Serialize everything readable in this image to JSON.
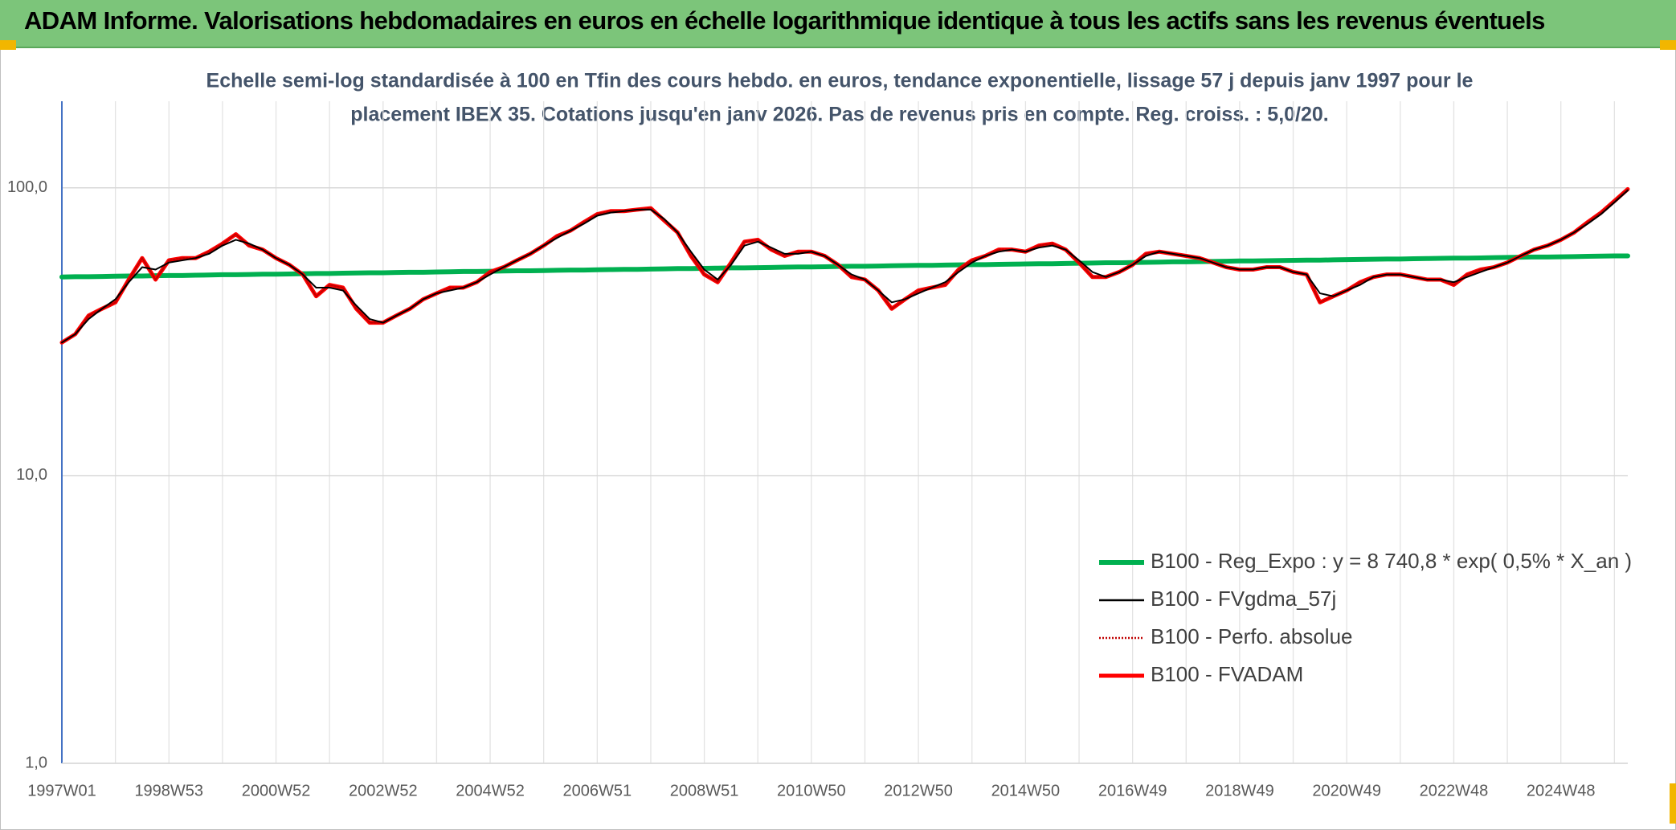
{
  "chart_data": {
    "type": "line",
    "title": "ADAM Informe. Valorisations hebdomadaires en euros en échelle logarithmique identique à tous les actifs sans les revenus éventuels",
    "subtitle": [
      "Echelle semi-log standardisée à 100 en Tfin des cours hebdo. en euros, tendance exponentielle, lissage 57 j depuis janv 1997 pour le",
      "placement IBEX 35. Cotations jusqu'en janv 2026. Pas de revenus pris en compte. Reg. croiss. : 5,0/20."
    ],
    "log_scale": true,
    "grid": true,
    "legend_position": "lower right",
    "ylim": [
      1,
      200
    ],
    "yticks": [
      {
        "value": 1,
        "label": "1,0"
      },
      {
        "value": 10,
        "label": "10,0"
      },
      {
        "value": 100,
        "label": "100,0"
      }
    ],
    "categories": [
      "1997W01",
      null,
      null,
      null,
      null,
      null,
      null,
      null,
      "1998W53",
      null,
      null,
      null,
      null,
      null,
      null,
      null,
      "2000W52",
      null,
      null,
      null,
      null,
      null,
      null,
      null,
      "2002W52",
      null,
      null,
      null,
      null,
      null,
      null,
      null,
      "2004W52",
      null,
      null,
      null,
      null,
      null,
      null,
      null,
      "2006W51",
      null,
      null,
      null,
      null,
      null,
      null,
      null,
      "2008W51",
      null,
      null,
      null,
      null,
      null,
      null,
      null,
      "2010W50",
      null,
      null,
      null,
      null,
      null,
      null,
      null,
      "2012W50",
      null,
      null,
      null,
      null,
      null,
      null,
      null,
      "2014W50",
      null,
      null,
      null,
      null,
      null,
      null,
      null,
      "2016W49",
      null,
      null,
      null,
      null,
      null,
      null,
      null,
      "2018W49",
      null,
      null,
      null,
      null,
      null,
      null,
      null,
      "2020W49",
      null,
      null,
      null,
      null,
      null,
      null,
      null,
      "2022W48",
      null,
      null,
      null,
      null,
      null,
      null,
      null,
      "2024W48",
      null,
      null,
      null,
      null,
      null
    ],
    "series": [
      {
        "name": "B100 - Reg_Expo : y = 8 740,8 * exp( 0,5% *  X_an )",
        "color": "#00b050",
        "style": "solid",
        "line_width": 6,
        "values": [
          49.0,
          49.1,
          49.1,
          49.2,
          49.3,
          49.4,
          49.4,
          49.5,
          49.6,
          49.6,
          49.7,
          49.8,
          49.9,
          49.9,
          50.0,
          50.1,
          50.1,
          50.2,
          50.3,
          50.4,
          50.4,
          50.5,
          50.6,
          50.7,
          50.7,
          50.8,
          50.9,
          50.9,
          51.0,
          51.1,
          51.2,
          51.2,
          51.3,
          51.4,
          51.5,
          51.5,
          51.6,
          51.7,
          51.8,
          51.8,
          51.9,
          52.0,
          52.1,
          52.1,
          52.2,
          52.3,
          52.4,
          52.4,
          52.5,
          52.6,
          52.7,
          52.7,
          52.8,
          52.9,
          53.0,
          53.1,
          53.1,
          53.2,
          53.3,
          53.4,
          53.4,
          53.5,
          53.6,
          53.7,
          53.8,
          53.8,
          53.9,
          54.0,
          54.1,
          54.1,
          54.2,
          54.3,
          54.4,
          54.5,
          54.5,
          54.6,
          54.7,
          54.8,
          54.9,
          54.9,
          55.0,
          55.1,
          55.2,
          55.3,
          55.3,
          55.4,
          55.5,
          55.6,
          55.7,
          55.7,
          55.8,
          55.9,
          56.0,
          56.1,
          56.1,
          56.2,
          56.3,
          56.4,
          56.5,
          56.6,
          56.6,
          56.7,
          56.8,
          56.9,
          57.0,
          57.0,
          57.1,
          57.2,
          57.3,
          57.4,
          57.5,
          57.5,
          57.6,
          57.7,
          57.8,
          57.9,
          58.0,
          58.0
        ]
      },
      {
        "name": "B100 - FVgdma_57j",
        "color": "#000000",
        "style": "solid",
        "line_width": 2,
        "values": [
          29,
          31,
          35,
          38,
          41,
          47,
          53,
          52,
          55,
          56,
          57,
          59,
          63,
          66,
          64,
          61,
          57,
          54,
          50,
          45,
          45,
          44,
          39,
          35,
          34,
          36,
          38,
          41,
          43,
          44,
          45,
          47,
          50,
          53,
          56,
          59,
          63,
          67,
          71,
          75,
          80,
          82,
          83,
          84,
          84,
          78,
          70,
          60,
          52,
          48,
          54,
          63,
          65,
          62,
          59,
          59,
          60,
          58,
          54,
          50,
          48,
          44,
          40,
          41,
          43,
          45,
          47,
          51,
          55,
          58,
          60,
          61,
          60,
          62,
          63,
          61,
          56,
          51,
          49,
          51,
          54,
          58,
          60,
          59,
          58,
          57,
          55,
          53,
          52,
          52,
          53,
          53,
          51,
          50,
          43,
          42,
          44,
          46,
          49,
          50,
          50,
          49,
          48,
          48,
          47,
          49,
          51,
          53,
          55,
          58,
          61,
          63,
          66,
          70,
          75,
          81,
          89,
          98
        ]
      },
      {
        "name": "B100 - Perfo. absolue",
        "color": "#c00000",
        "style": "dotted",
        "line_width": 2,
        "values": [
          29,
          31,
          36,
          38,
          40,
          48,
          57,
          48,
          56,
          57,
          57,
          60,
          64,
          69,
          63,
          61,
          57,
          54,
          50,
          42,
          46,
          45,
          38,
          34,
          34,
          36,
          38,
          41,
          43,
          45,
          45,
          47,
          51,
          53,
          56,
          59,
          63,
          68,
          71,
          76,
          81,
          83,
          83,
          84,
          85,
          77,
          70,
          58,
          50,
          47,
          55,
          65,
          66,
          61,
          58,
          60,
          60,
          58,
          54,
          49,
          48,
          44,
          38,
          41,
          44,
          45,
          46,
          52,
          56,
          58,
          61,
          61,
          60,
          63,
          64,
          61,
          55,
          49,
          49,
          51,
          54,
          59,
          60,
          59,
          58,
          57,
          55,
          53,
          52,
          52,
          53,
          53,
          51,
          50,
          40,
          42,
          44,
          47,
          49,
          50,
          50,
          49,
          48,
          48,
          46,
          50,
          52,
          53,
          55,
          58,
          61,
          63,
          66,
          70,
          76,
          82,
          90,
          99
        ]
      },
      {
        "name": "B100 - FVADAM",
        "color": "#ff0000",
        "style": "solid",
        "line_width": 5,
        "values": [
          29,
          31,
          36,
          38,
          40,
          48,
          57,
          48,
          56,
          57,
          57,
          60,
          64,
          69,
          63,
          61,
          57,
          54,
          50,
          42,
          46,
          45,
          38,
          34,
          34,
          36,
          38,
          41,
          43,
          45,
          45,
          47,
          51,
          53,
          56,
          59,
          63,
          68,
          71,
          76,
          81,
          83,
          83,
          84,
          85,
          77,
          70,
          58,
          50,
          47,
          55,
          65,
          66,
          61,
          58,
          60,
          60,
          58,
          54,
          49,
          48,
          44,
          38,
          41,
          44,
          45,
          46,
          52,
          56,
          58,
          61,
          61,
          60,
          63,
          64,
          61,
          55,
          49,
          49,
          51,
          54,
          59,
          60,
          59,
          58,
          57,
          55,
          53,
          52,
          52,
          53,
          53,
          51,
          50,
          40,
          42,
          44,
          47,
          49,
          50,
          50,
          49,
          48,
          48,
          46,
          50,
          52,
          53,
          55,
          58,
          61,
          63,
          66,
          70,
          76,
          82,
          90,
          99
        ]
      }
    ]
  }
}
